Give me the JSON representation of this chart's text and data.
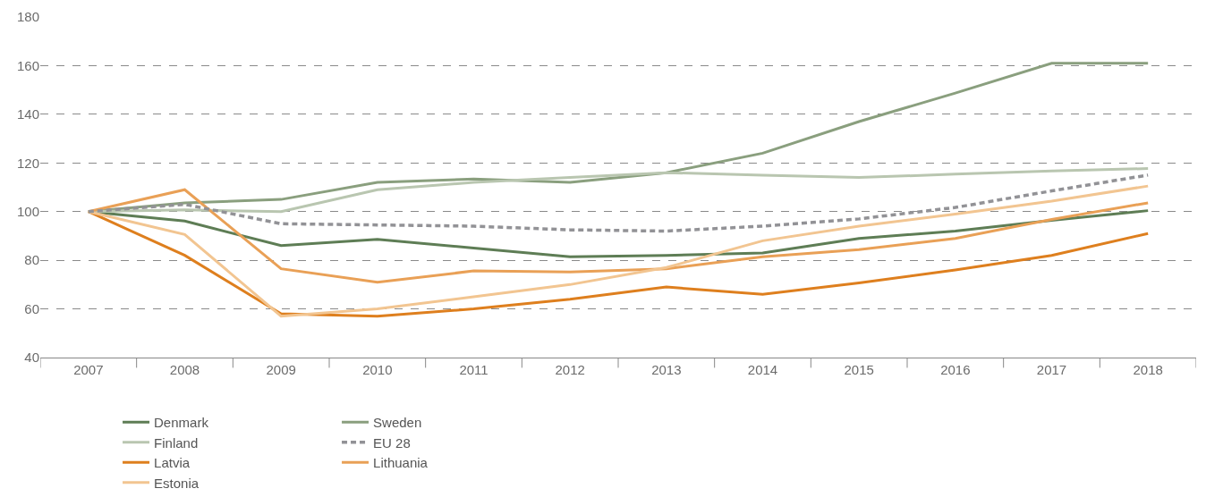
{
  "chart_data": {
    "type": "line",
    "categories": [
      "2007",
      "2008",
      "2009",
      "2010",
      "2011",
      "2012",
      "2013",
      "2014",
      "2015",
      "2016",
      "2017",
      "2018"
    ],
    "series": [
      {
        "name": "Denmark",
        "color": "#5e7d55",
        "values": [
          100,
          96.1,
          86,
          88.6,
          85,
          81.4,
          82,
          83,
          89,
          92,
          96.4,
          100.4
        ]
      },
      {
        "name": "Sweden",
        "color": "#8a9f7e",
        "values": [
          100,
          103.6,
          105,
          112,
          113.4,
          112,
          116,
          124,
          137,
          148.7,
          161,
          161
        ]
      },
      {
        "name": "Finland",
        "color": "#b9c6b0",
        "values": [
          100,
          100.7,
          100,
          109,
          112,
          114,
          116,
          115,
          114,
          115.4,
          116.7,
          117.7
        ]
      },
      {
        "name": "EU 28",
        "color": "#929296",
        "line_style": "dashed",
        "values": [
          100,
          103,
          95,
          94.5,
          94,
          92.5,
          92,
          94,
          97,
          101.7,
          108.5,
          115
        ]
      },
      {
        "name": "Latvia",
        "color": "#de7f1e",
        "values": [
          100,
          82,
          58,
          57,
          60,
          64,
          69,
          66,
          70.7,
          76,
          82,
          91
        ]
      },
      {
        "name": "Lithuania",
        "color": "#e9a056",
        "values": [
          100,
          109,
          76.5,
          71,
          75.6,
          75.2,
          76.5,
          81.4,
          84.4,
          89,
          96.8,
          103.6
        ]
      },
      {
        "name": "Estonia",
        "color": "#f2c591",
        "values": [
          100,
          90.6,
          57,
          60,
          65,
          70,
          77,
          88,
          94,
          99,
          104.3,
          110.5
        ]
      }
    ],
    "ylim": [
      40,
      180
    ],
    "yticks": [
      40,
      60,
      80,
      100,
      120,
      140,
      160,
      180
    ],
    "grid": "y",
    "legend": "bottom",
    "marker": "none",
    "line_style": "solid"
  }
}
